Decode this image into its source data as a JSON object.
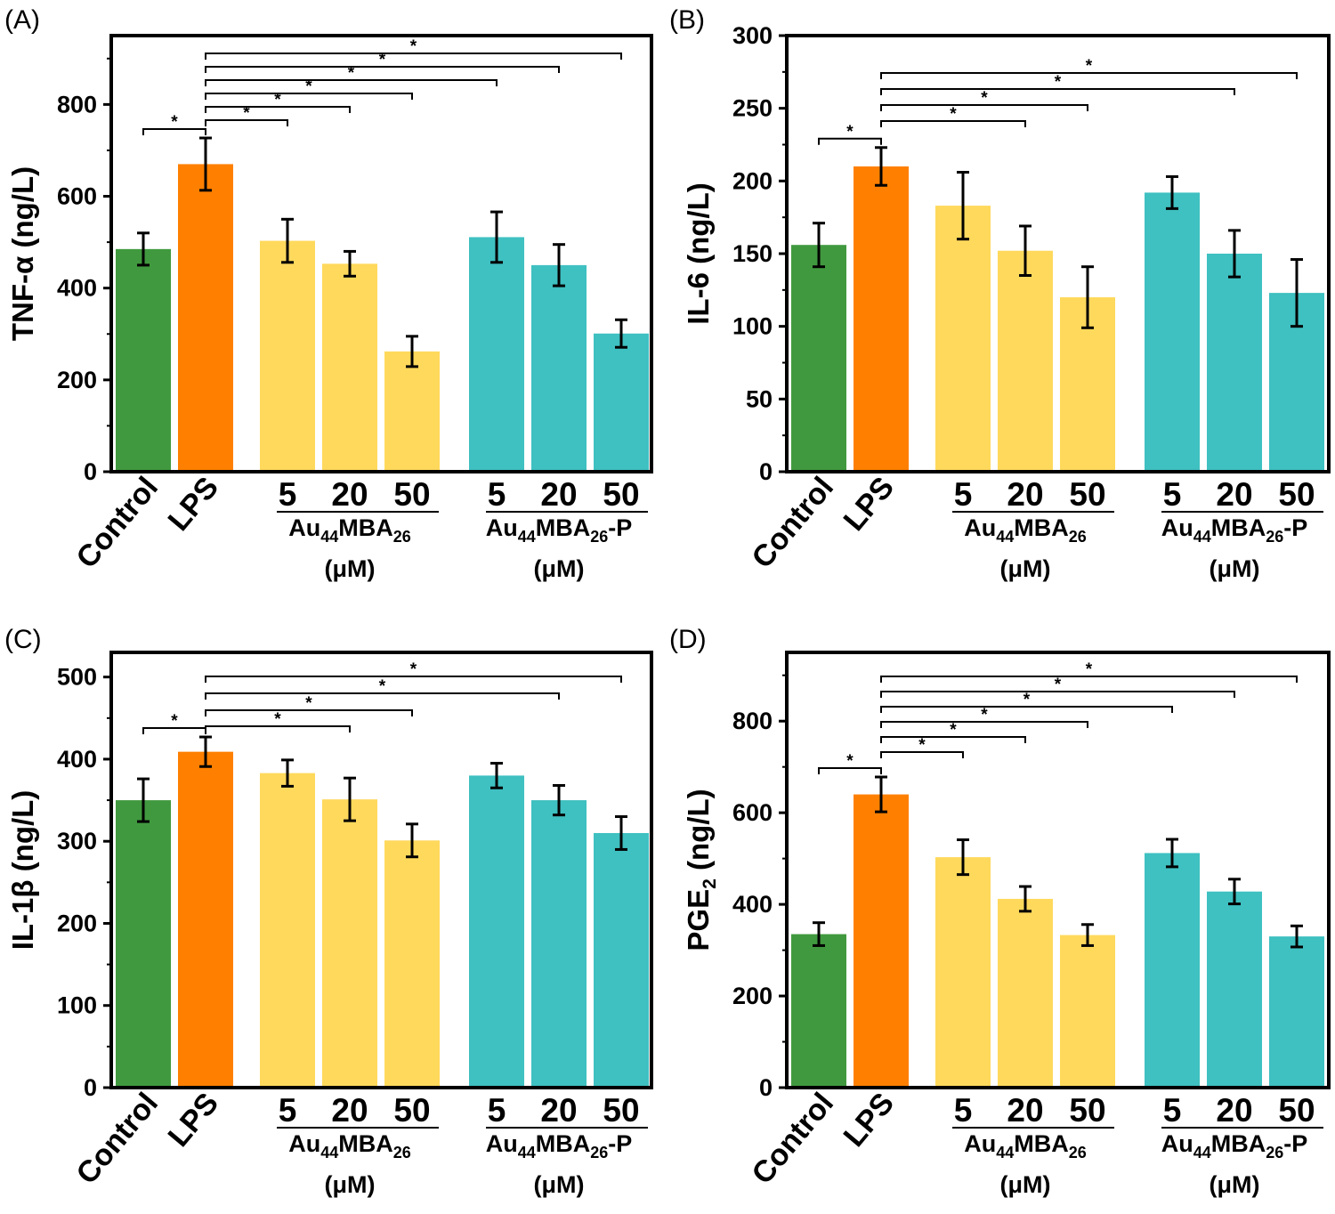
{
  "colors": {
    "control": "#41993f",
    "lps": "#ff8000",
    "au44mba26": "#ffd95c",
    "au44mba26_p": "#3fc0c1"
  },
  "labels": {
    "categories": [
      "Control",
      "LPS"
    ],
    "concentrations": [
      "5",
      "20",
      "50"
    ],
    "group1": {
      "base": "Au",
      "sub1": "44",
      "mid": "MBA",
      "sub2": "26",
      "suffix": ""
    },
    "group2": {
      "base": "Au",
      "sub1": "44",
      "mid": "MBA",
      "sub2": "26",
      "suffix": "-P"
    },
    "unit": "(μM)",
    "significance_mark": "*"
  },
  "chart_data": [
    {
      "panel": "(A)",
      "type": "bar",
      "ylabel": "TNF-α (ng/L)",
      "ylim": [
        0,
        950
      ],
      "yticks": [
        0,
        200,
        400,
        600,
        800
      ],
      "categories": [
        "Control",
        "LPS",
        "Au44MBA26 5",
        "Au44MBA26 20",
        "Au44MBA26 50",
        "Au44MBA26-P 5",
        "Au44MBA26-P 20",
        "Au44MBA26-P 50"
      ],
      "values": [
        485,
        670,
        503,
        453,
        262,
        511,
        450,
        301
      ],
      "errors": [
        35,
        57,
        47,
        27,
        33,
        55,
        45,
        30
      ],
      "significance": [
        [
          0,
          1
        ],
        [
          1,
          2
        ],
        [
          1,
          3
        ],
        [
          1,
          4
        ],
        [
          1,
          5
        ],
        [
          1,
          6
        ],
        [
          1,
          7
        ]
      ]
    },
    {
      "panel": "(B)",
      "type": "bar",
      "ylabel": "IL-6 (ng/L)",
      "ylim": [
        0,
        300
      ],
      "yticks": [
        0,
        50,
        100,
        150,
        200,
        250,
        300
      ],
      "categories": [
        "Control",
        "LPS",
        "Au44MBA26 5",
        "Au44MBA26 20",
        "Au44MBA26 50",
        "Au44MBA26-P 5",
        "Au44MBA26-P 20",
        "Au44MBA26-P 50"
      ],
      "values": [
        156,
        210,
        183,
        152,
        120,
        192,
        150,
        123
      ],
      "errors": [
        15,
        13,
        23,
        17,
        21,
        11,
        16,
        23
      ],
      "significance": [
        [
          0,
          1
        ],
        [
          1,
          3
        ],
        [
          1,
          4
        ],
        [
          1,
          6
        ],
        [
          1,
          7
        ]
      ]
    },
    {
      "panel": "(C)",
      "type": "bar",
      "ylabel": "IL-1β (ng/L)",
      "ylim": [
        0,
        530
      ],
      "yticks": [
        0,
        100,
        200,
        300,
        400,
        500
      ],
      "categories": [
        "Control",
        "LPS",
        "Au44MBA26 5",
        "Au44MBA26 20",
        "Au44MBA26 50",
        "Au44MBA26-P 5",
        "Au44MBA26-P 20",
        "Au44MBA26-P 50"
      ],
      "values": [
        350,
        409,
        383,
        351,
        301,
        380,
        350,
        310
      ],
      "errors": [
        26,
        18,
        16,
        26,
        20,
        15,
        18,
        20
      ],
      "significance": [
        [
          0,
          1
        ],
        [
          1,
          3
        ],
        [
          1,
          4
        ],
        [
          1,
          6
        ],
        [
          1,
          7
        ]
      ]
    },
    {
      "panel": "(D)",
      "type": "bar",
      "ylabel": "PGE2 (ng/L)",
      "ylim": [
        0,
        950
      ],
      "yticks": [
        0,
        200,
        400,
        600,
        800
      ],
      "categories": [
        "Control",
        "LPS",
        "Au44MBA26 5",
        "Au44MBA26 20",
        "Au44MBA26 50",
        "Au44MBA26-P 5",
        "Au44MBA26-P 20",
        "Au44MBA26-P 50"
      ],
      "values": [
        335,
        640,
        503,
        412,
        333,
        512,
        428,
        330
      ],
      "errors": [
        25,
        38,
        38,
        27,
        23,
        30,
        27,
        23
      ],
      "significance": [
        [
          0,
          1
        ],
        [
          1,
          2
        ],
        [
          1,
          3
        ],
        [
          1,
          4
        ],
        [
          1,
          5
        ],
        [
          1,
          6
        ],
        [
          1,
          7
        ]
      ]
    }
  ]
}
